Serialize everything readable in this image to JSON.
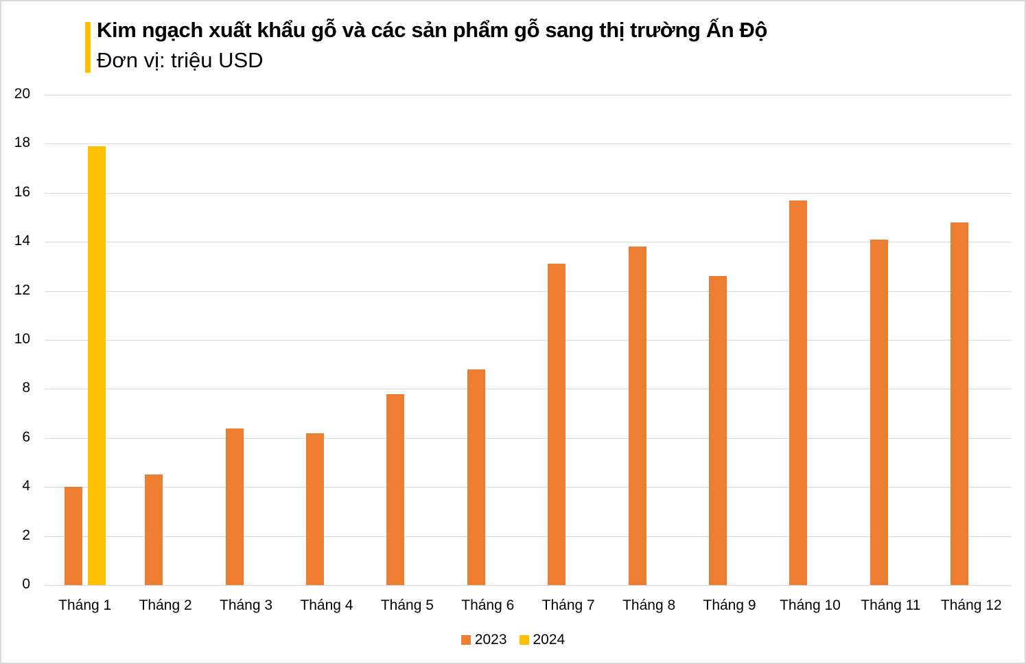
{
  "chart_data": {
    "type": "bar",
    "title": "Kim ngạch xuất khẩu gỗ và các sản phẩm gỗ sang thị trường Ấn Độ",
    "subtitle": "Đơn vị: triệu USD",
    "xlabel": "",
    "ylabel": "",
    "ylim": [
      0,
      20
    ],
    "yticks": [
      0,
      2,
      4,
      6,
      8,
      10,
      12,
      14,
      16,
      18,
      20
    ],
    "grid": true,
    "legend_position": "bottom",
    "categories": [
      "Tháng 1",
      "Tháng 2",
      "Tháng 3",
      "Tháng 4",
      "Tháng 5",
      "Tháng 6",
      "Tháng 7",
      "Tháng 8",
      "Tháng 9",
      "Tháng 10",
      "Tháng 11",
      "Tháng 12"
    ],
    "series": [
      {
        "name": "2023",
        "color": "#ed7d31",
        "values": [
          4.0,
          4.5,
          6.4,
          6.2,
          7.8,
          8.8,
          13.1,
          13.8,
          12.6,
          15.7,
          14.1,
          14.8
        ]
      },
      {
        "name": "2024",
        "color": "#ffc000",
        "values": [
          17.9,
          null,
          null,
          null,
          null,
          null,
          null,
          null,
          null,
          null,
          null,
          null
        ]
      }
    ]
  },
  "header": {
    "title": "Kim ngạch xuất khẩu gỗ và các sản phẩm gỗ sang thị trường Ấn Độ",
    "subtitle": "Đơn vị: triệu USD",
    "accent_color": "#ffc000"
  },
  "legend": {
    "items": [
      {
        "label": "2023",
        "color": "#ed7d31"
      },
      {
        "label": "2024",
        "color": "#ffc000"
      }
    ]
  }
}
